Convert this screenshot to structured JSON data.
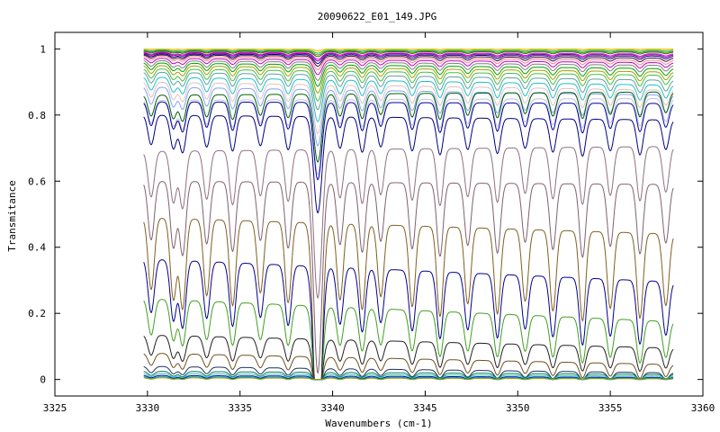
{
  "chart_data": {
    "type": "line",
    "title": "20090622_E01_149.JPG",
    "xlabel": "Wavenumbers (cm-1)",
    "ylabel": "Transmitance",
    "xlim": [
      3325,
      3360
    ],
    "ylim": [
      -0.05,
      1.05
    ],
    "x_ticks": [
      3325,
      3330,
      3335,
      3340,
      3345,
      3350,
      3355,
      3360
    ],
    "y_ticks": [
      0,
      0.2,
      0.4,
      0.6,
      0.8,
      1
    ],
    "x_tick_labels": [
      "3325",
      "3330",
      "3335",
      "3340",
      "3345",
      "3350",
      "3355",
      "3360"
    ],
    "y_tick_labels": [
      "0",
      "0.2",
      "0.4",
      "0.6",
      "0.8",
      "1"
    ],
    "x_range": [
      3329.8,
      3358.4
    ],
    "grid": false,
    "legend": "none",
    "absorption_lines": [
      3330.2,
      3331.4,
      3331.9,
      3333.2,
      3334.6,
      3336.1,
      3337.6,
      3339.2,
      3340.4,
      3341.6,
      3342.6,
      3344.3,
      3345.8,
      3347.3,
      3348.9,
      3350.4,
      3351.9,
      3353.5,
      3355.0,
      3356.6,
      3358.0
    ],
    "series": [
      {
        "color": "#ffa500",
        "start": 1.0,
        "end": 1.0
      },
      {
        "color": "#ffff00",
        "start": 0.998,
        "end": 0.998
      },
      {
        "color": "#00c0c0",
        "start": 0.997,
        "end": 0.996
      },
      {
        "color": "#808000",
        "start": 0.995,
        "end": 0.993
      },
      {
        "color": "#008000",
        "start": 0.993,
        "end": 0.99
      },
      {
        "color": "#ff00ff",
        "start": 0.99,
        "end": 0.985
      },
      {
        "color": "#800080",
        "start": 0.988,
        "end": 0.982
      },
      {
        "color": "#000080",
        "start": 0.985,
        "end": 0.978
      },
      {
        "color": "#400040",
        "start": 0.982,
        "end": 0.972
      },
      {
        "color": "#ff8080",
        "start": 0.978,
        "end": 0.965
      },
      {
        "color": "#c000c0",
        "start": 0.972,
        "end": 0.958
      },
      {
        "color": "#808080",
        "start": 0.965,
        "end": 0.95
      },
      {
        "color": "#00a000",
        "start": 0.958,
        "end": 0.94
      },
      {
        "color": "#a0a000",
        "start": 0.95,
        "end": 0.93
      },
      {
        "color": "#40c040",
        "start": 0.94,
        "end": 0.92
      },
      {
        "color": "#60a0a0",
        "start": 0.93,
        "end": 0.905
      },
      {
        "color": "#20c0c0",
        "start": 0.915,
        "end": 0.89
      },
      {
        "color": "#e0c0c0",
        "start": 0.9,
        "end": 0.875
      },
      {
        "color": "#80a0ff",
        "start": 0.885,
        "end": 0.86
      },
      {
        "color": "#006000",
        "start": 0.86,
        "end": 0.87
      },
      {
        "color": "#c0c0e0",
        "start": 0.845,
        "end": 0.85
      },
      {
        "color": "#0000a0",
        "start": 0.84,
        "end": 0.835
      },
      {
        "color": "#000080",
        "start": 0.8,
        "end": 0.785
      },
      {
        "color": "#907080",
        "start": 0.69,
        "end": 0.705
      },
      {
        "color": "#806070",
        "start": 0.6,
        "end": 0.59
      },
      {
        "color": "#806020",
        "start": 0.49,
        "end": 0.44
      },
      {
        "color": "#000090",
        "start": 0.365,
        "end": 0.295
      },
      {
        "color": "#40a020",
        "start": 0.245,
        "end": 0.175
      },
      {
        "color": "#202020",
        "start": 0.135,
        "end": 0.095
      },
      {
        "color": "#705020",
        "start": 0.08,
        "end": 0.045
      },
      {
        "color": "#203060",
        "start": 0.04,
        "end": 0.02
      },
      {
        "color": "#008060",
        "start": 0.025,
        "end": 0.015
      },
      {
        "color": "#40c0a0",
        "start": 0.018,
        "end": 0.01
      },
      {
        "color": "#0000c0",
        "start": 0.012,
        "end": 0.006
      },
      {
        "color": "#00a0a0",
        "start": 0.008,
        "end": 0.004
      },
      {
        "color": "#a0a000",
        "start": 0.005,
        "end": 0.002
      }
    ]
  }
}
